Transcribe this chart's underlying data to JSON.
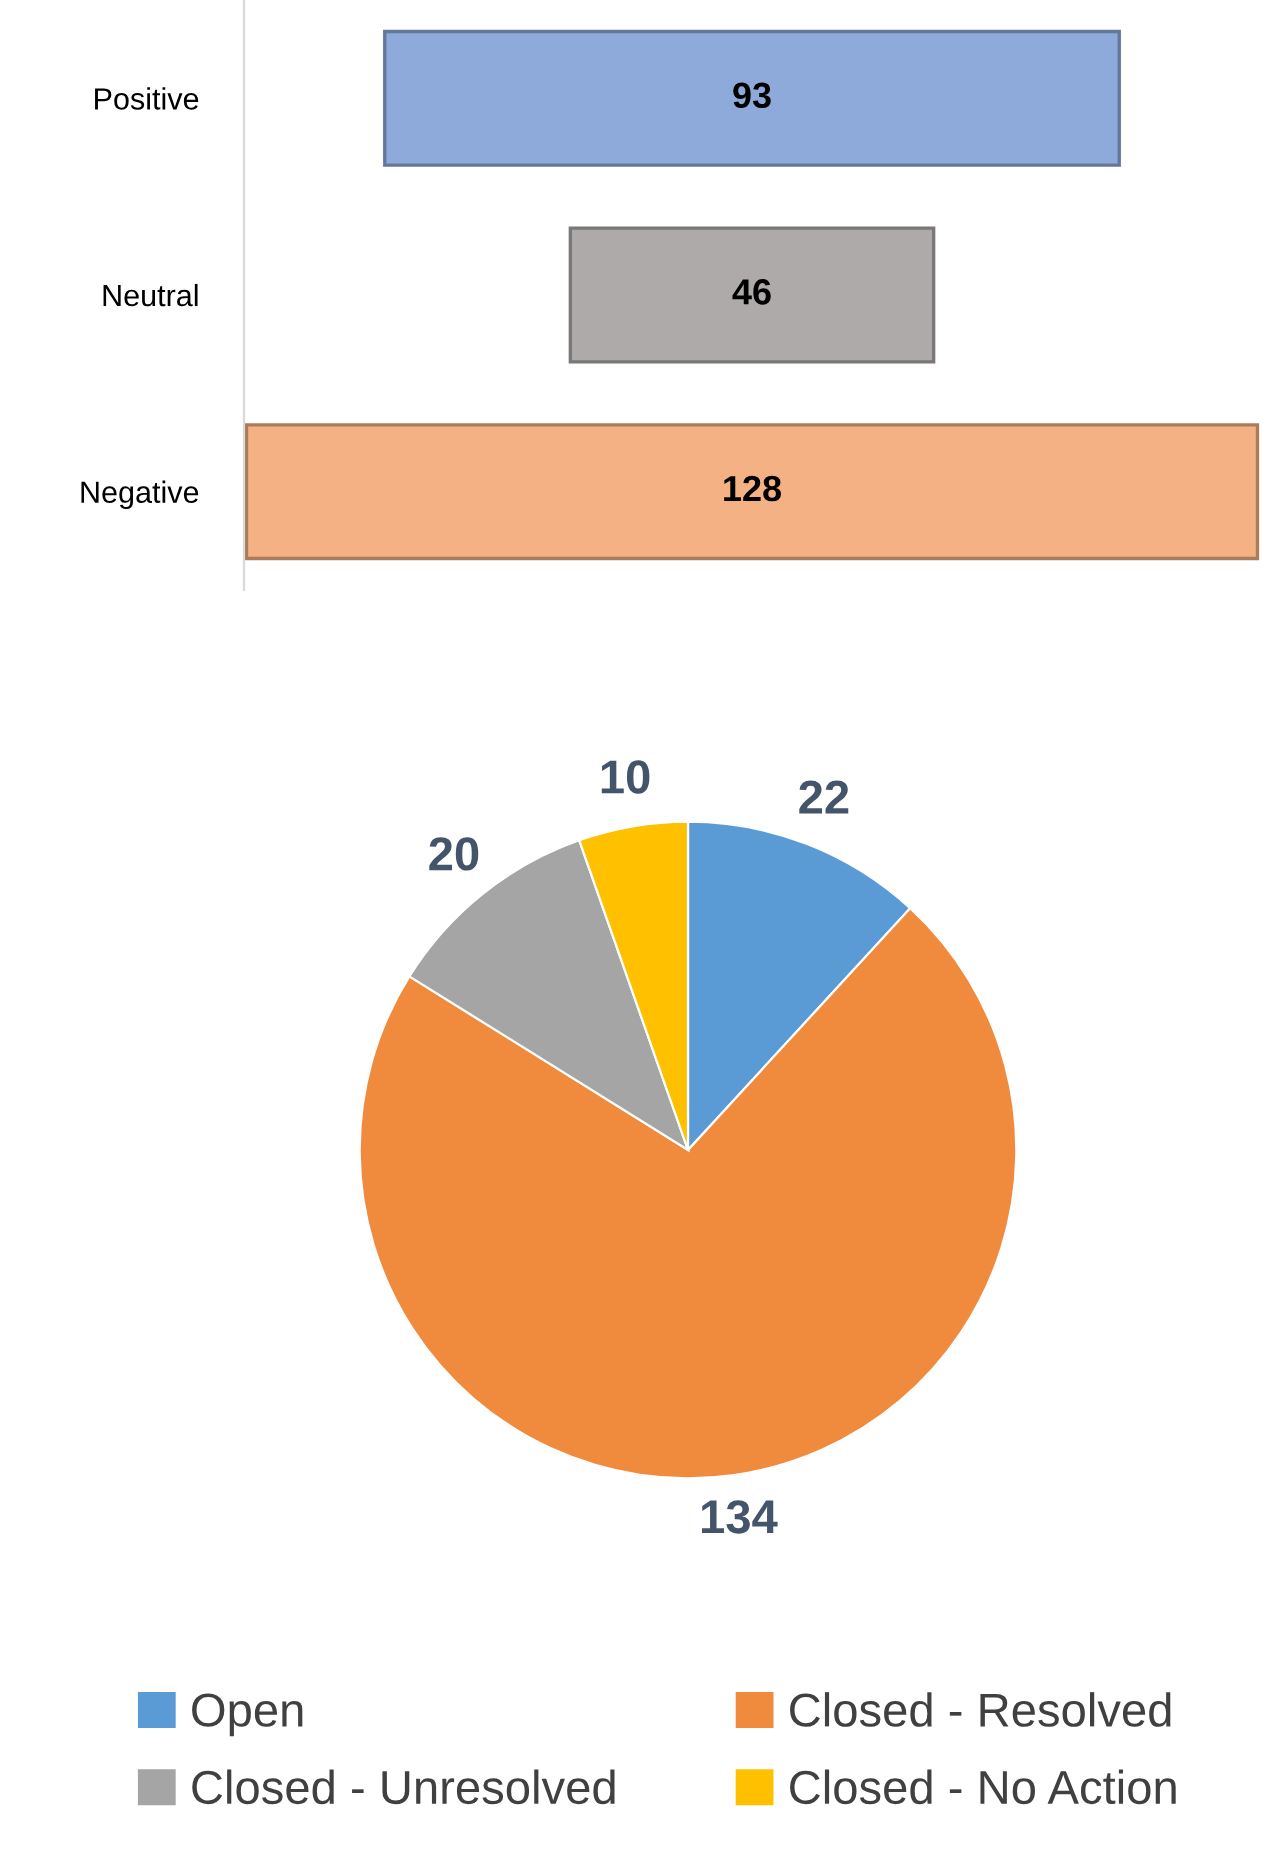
{
  "chart_data": [
    {
      "type": "other",
      "categories": [
        "Positive",
        "Neutral",
        "Negative"
      ],
      "values": [
        93,
        46,
        128
      ],
      "colors": [
        "#8eaadb",
        "#aeaaaa",
        "#f4b183"
      ],
      "data_labels": true
    },
    {
      "type": "pie",
      "categories": [
        "Open",
        "Closed - Resolved",
        "Closed - Unresolved",
        "Closed - No Action"
      ],
      "values": [
        22,
        134,
        20,
        10
      ],
      "colors": [
        "#5b9bd5",
        "#f08a3c",
        "#a5a5a5",
        "#ffc000"
      ],
      "data_labels": true,
      "legend": "bottom"
    }
  ]
}
